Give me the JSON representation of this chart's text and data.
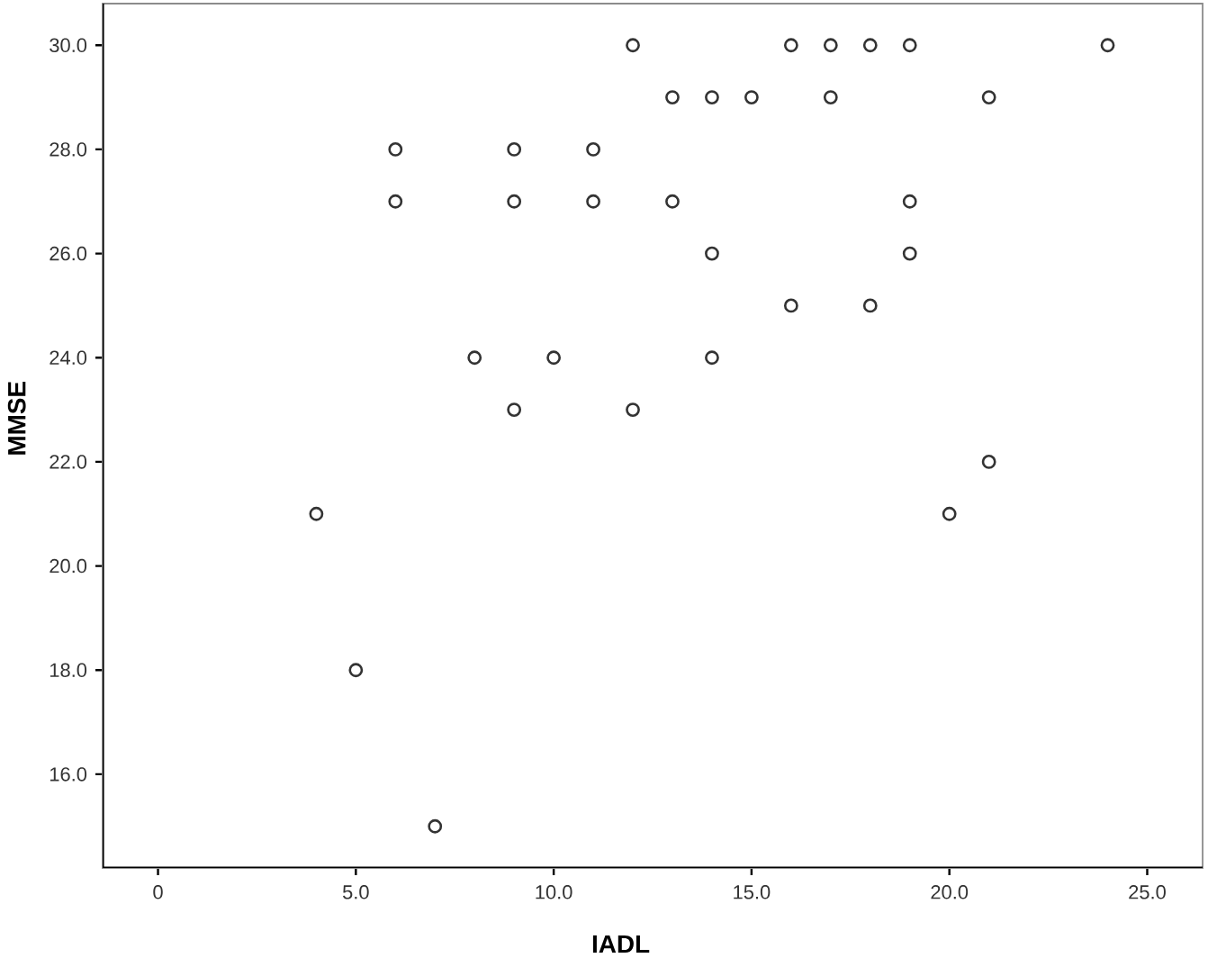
{
  "chart_data": {
    "type": "scatter",
    "xlabel": "IADL",
    "ylabel": "MMSE",
    "x": [
      4,
      5,
      6,
      6,
      7,
      8,
      9,
      9,
      9,
      10,
      11,
      11,
      12,
      12,
      13,
      13,
      14,
      14,
      14,
      15,
      16,
      16,
      17,
      17,
      18,
      18,
      19,
      19,
      19,
      20,
      21,
      21,
      24
    ],
    "values": [
      21,
      18,
      28,
      27,
      15,
      24,
      28,
      27,
      23,
      24,
      28,
      27,
      30,
      23,
      29,
      27,
      29,
      26,
      24,
      29,
      30,
      25,
      30,
      29,
      30,
      25,
      30,
      27,
      26,
      21,
      29,
      22,
      30
    ],
    "color": "#333333",
    "marker": "circle",
    "grid": false,
    "xlim": [
      -1.4,
      26.4
    ],
    "ylim": [
      14.2,
      30.8
    ],
    "xticks": [
      0,
      {
        "value": 5,
        "label": "5.0"
      },
      {
        "value": 10,
        "label": "10.0"
      },
      {
        "value": 15,
        "label": "15.0"
      },
      {
        "value": 20,
        "label": "20.0"
      },
      {
        "value": 25,
        "label": "25.0"
      }
    ],
    "yticks": [
      {
        "value": 16,
        "label": "16.0"
      },
      {
        "value": 18,
        "label": "18.0"
      },
      {
        "value": 20,
        "label": "20.0"
      },
      {
        "value": 22,
        "label": "22.0"
      },
      {
        "value": 24,
        "label": "24.0"
      },
      {
        "value": 26,
        "label": "26.0"
      },
      {
        "value": 28,
        "label": "28.0"
      },
      {
        "value": 30,
        "label": "30.0"
      }
    ]
  }
}
